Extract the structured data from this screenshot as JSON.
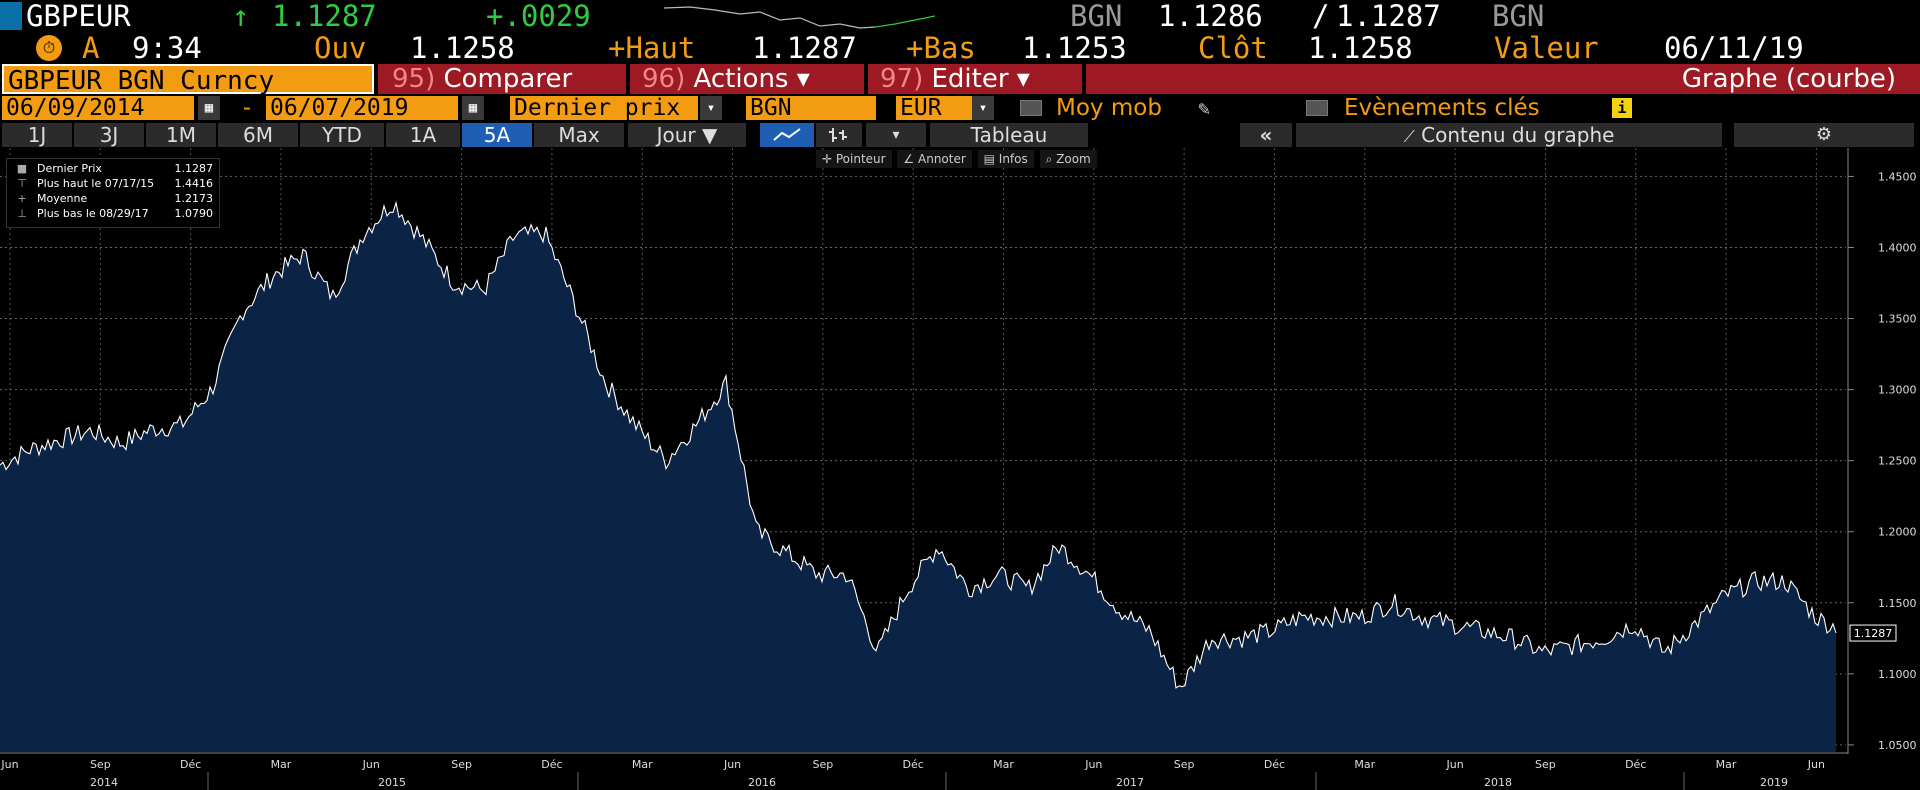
{
  "header": {
    "ticker": "GBPEUR",
    "arrow": "↑",
    "last": "1.1287",
    "change": "+.0029",
    "src1": "BGN",
    "bid": "1.1286",
    "sep": "/",
    "ask": "1.1287",
    "src2": "BGN"
  },
  "row2": {
    "flag": "A",
    "time": "9:34",
    "open_label": "Ouv",
    "open": "1.1258",
    "high_label": "+Haut",
    "high": "1.1287",
    "low_label": "+Bas",
    "low": "1.1253",
    "close_label": "Clôt",
    "close": "1.1258",
    "value_label": "Valeur",
    "value_date": "06/11/19"
  },
  "toolbar": {
    "security": "GBPEUR BGN Curncy",
    "compare_num": "95)",
    "compare": "Comparer",
    "actions_num": "96)",
    "actions": "Actions ▾",
    "edit_num": "97)",
    "edit": "Editer ▾",
    "graph_type": "Graphe (courbe)"
  },
  "controls": {
    "start": "06/09/2014",
    "dash": "-",
    "end": "06/07/2019",
    "field": "Dernier prix",
    "source": "BGN",
    "currency": "EUR",
    "mov_avg": "Moy mob",
    "key_events": "Evènements clés"
  },
  "ranges": {
    "items": [
      "1J",
      "3J",
      "1M",
      "6M",
      "YTD",
      "1A",
      "5A",
      "Max"
    ],
    "active": "5A",
    "period": "Jour ▼",
    "table": "Tableau",
    "content": "Contenu du graphe"
  },
  "tools": {
    "pointer": "Pointeur",
    "annotate": "Annoter",
    "info": "Infos",
    "zoom": "Zoom"
  },
  "legend": [
    {
      "label": "Dernier Prix",
      "value": "1.1287",
      "icon": "square"
    },
    {
      "label": "Plus haut le 07/17/15",
      "value": "1.4416",
      "icon": "T"
    },
    {
      "label": "Moyenne",
      "value": "1.2173",
      "icon": "+"
    },
    {
      "label": "Plus bas le 08/29/17",
      "value": "1.0790",
      "icon": "⊥"
    }
  ],
  "colors": {
    "fill": "#0b2445",
    "line": "#ffffff",
    "accent": "#f39c12",
    "up": "#2ecc40",
    "toolbar_red": "#9d1a24",
    "active_btn": "#1e5fb4"
  },
  "chart_data": {
    "type": "area",
    "ylim": [
      1.045,
      1.47
    ],
    "yticks": [
      "1.0500",
      "1.1000",
      "1.1500",
      "1.2000",
      "1.2500",
      "1.3000",
      "1.3500",
      "1.4000",
      "1.4500"
    ],
    "last_label": "1.1287",
    "month_ticks": [
      "Jun",
      "Sep",
      "Déc",
      "Mar",
      "Jun",
      "Sep",
      "Déc",
      "Mar",
      "Jun",
      "Sep",
      "Déc",
      "Mar",
      "Jun",
      "Sep",
      "Déc",
      "Mar",
      "Jun",
      "Sep",
      "Déc",
      "Mar",
      "Jun"
    ],
    "year_ticks": [
      "2014",
      "2015",
      "2016",
      "2017",
      "2018",
      "2019"
    ],
    "x": [
      "2014-06",
      "2014-07",
      "2014-08",
      "2014-09",
      "2014-10",
      "2014-11",
      "2014-12",
      "2015-01",
      "2015-02",
      "2015-03",
      "2015-04",
      "2015-05",
      "2015-06",
      "2015-07",
      "2015-08",
      "2015-09",
      "2015-10",
      "2015-11",
      "2015-12",
      "2016-01",
      "2016-02",
      "2016-03",
      "2016-04",
      "2016-05",
      "2016-06a",
      "2016-06b",
      "2016-07",
      "2016-08",
      "2016-09",
      "2016-10",
      "2016-11",
      "2016-12",
      "2017-01",
      "2017-02",
      "2017-03",
      "2017-04",
      "2017-05",
      "2017-06",
      "2017-07",
      "2017-08",
      "2017-09",
      "2017-10",
      "2017-11",
      "2017-12",
      "2018-01",
      "2018-02",
      "2018-03",
      "2018-04",
      "2018-05",
      "2018-06",
      "2018-07",
      "2018-08",
      "2018-09",
      "2018-10",
      "2018-11",
      "2018-12",
      "2019-01",
      "2019-02",
      "2019-03",
      "2019-04",
      "2019-05",
      "2019-06"
    ],
    "y": [
      1.247,
      1.258,
      1.265,
      1.271,
      1.262,
      1.272,
      1.275,
      1.3,
      1.355,
      1.38,
      1.395,
      1.365,
      1.41,
      1.432,
      1.405,
      1.375,
      1.37,
      1.408,
      1.41,
      1.36,
      1.305,
      1.275,
      1.25,
      1.275,
      1.305,
      1.2,
      1.185,
      1.17,
      1.17,
      1.115,
      1.16,
      1.19,
      1.16,
      1.17,
      1.16,
      1.19,
      1.17,
      1.145,
      1.13,
      1.09,
      1.125,
      1.125,
      1.13,
      1.14,
      1.14,
      1.14,
      1.15,
      1.14,
      1.135,
      1.13,
      1.125,
      1.115,
      1.12,
      1.125,
      1.135,
      1.115,
      1.135,
      1.155,
      1.165,
      1.165,
      1.14,
      1.1287
    ]
  }
}
